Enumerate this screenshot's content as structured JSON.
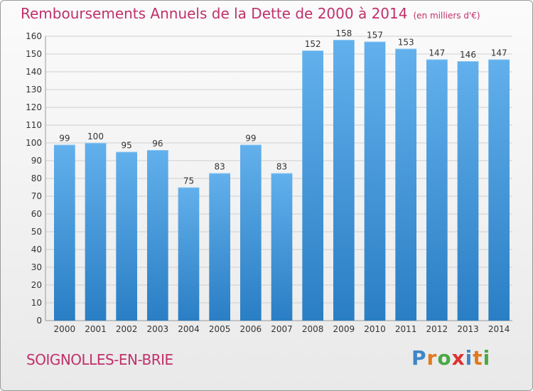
{
  "title": "Remboursements Annuels de la Dette de 2000 à 2014",
  "title_unit": "(en milliers d'€)",
  "commune": "SOIGNOLLES-EN-BRIE",
  "logo": {
    "text": "Proxiti",
    "letters": [
      {
        "char": "P",
        "color": "#3f86c8"
      },
      {
        "char": "r",
        "color": "#e07a1f"
      },
      {
        "char": "o",
        "color": "#4aa843"
      },
      {
        "char": "x",
        "color": "#e03030"
      },
      {
        "char": "i",
        "color": "#3f86c8"
      },
      {
        "char": "t",
        "color": "#e07a1f"
      },
      {
        "char": "i",
        "color": "#4aa843"
      }
    ]
  },
  "colors": {
    "bar_light": "#62b0ec",
    "bar_dark": "#2a7ec4",
    "grid": "#cfcfcf",
    "title": "#c0306a"
  },
  "chart_data": {
    "type": "bar",
    "categories": [
      "2000",
      "2001",
      "2002",
      "2003",
      "2004",
      "2005",
      "2006",
      "2007",
      "2008",
      "2009",
      "2010",
      "2011",
      "2012",
      "2013",
      "2014"
    ],
    "values": [
      99,
      100,
      95,
      96,
      75,
      83,
      99,
      83,
      152,
      158,
      157,
      153,
      147,
      146,
      147
    ],
    "ylim": [
      0,
      160
    ],
    "yticks": [
      0,
      10,
      20,
      30,
      40,
      50,
      60,
      70,
      80,
      90,
      100,
      110,
      120,
      130,
      140,
      150,
      160
    ],
    "grid": true,
    "data_labels": true
  }
}
